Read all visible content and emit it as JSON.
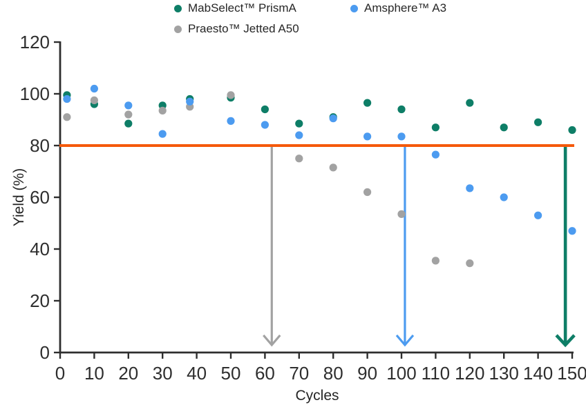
{
  "legend": {
    "items": [
      {
        "label": "MabSelect™ PrismA",
        "color": "#0e7e67"
      },
      {
        "label": "Amsphere™ A3",
        "color": "#4c9bf0"
      },
      {
        "label": "Praesto™ Jetted A50",
        "color": "#a2a2a2"
      }
    ]
  },
  "chart_data": {
    "type": "scatter",
    "title": "",
    "xlabel": "Cycles",
    "ylabel": "Yield (%)",
    "xlim": [
      0,
      150
    ],
    "ylim": [
      0,
      120
    ],
    "xticks": [
      0,
      10,
      20,
      30,
      40,
      50,
      60,
      70,
      80,
      90,
      100,
      110,
      120,
      130,
      140,
      150
    ],
    "yticks": [
      0,
      20,
      40,
      60,
      80,
      100,
      120
    ],
    "grid": false,
    "legend_position": "top",
    "axis_color": "#2e2e2e",
    "tick_label_color": "#2e2e2e",
    "threshold_line": {
      "y": 80,
      "color": "#f5590a"
    },
    "series": [
      {
        "name": "MabSelect™ PrismA",
        "color": "#0e7e67",
        "points": [
          [
            2,
            99.5
          ],
          [
            10,
            96
          ],
          [
            20,
            88.5
          ],
          [
            30,
            95.5
          ],
          [
            38,
            98
          ],
          [
            50,
            98.5
          ],
          [
            60,
            94
          ],
          [
            70,
            88.5
          ],
          [
            80,
            91
          ],
          [
            90,
            96.5
          ],
          [
            100,
            94
          ],
          [
            110,
            87
          ],
          [
            120,
            96.5
          ],
          [
            130,
            87
          ],
          [
            140,
            89
          ],
          [
            150,
            86
          ]
        ]
      },
      {
        "name": "Amsphere™ A3",
        "color": "#4c9bf0",
        "points": [
          [
            2,
            98
          ],
          [
            10,
            102
          ],
          [
            20,
            95.5
          ],
          [
            30,
            84.5
          ],
          [
            38,
            97
          ],
          [
            50,
            89.5
          ],
          [
            60,
            88
          ],
          [
            70,
            84
          ],
          [
            80,
            90.5
          ],
          [
            90,
            83.5
          ],
          [
            100,
            83.5
          ],
          [
            110,
            76.5
          ],
          [
            120,
            63.5
          ],
          [
            130,
            60
          ],
          [
            140,
            53
          ],
          [
            150,
            47
          ]
        ]
      },
      {
        "name": "Praesto™ Jetted A50",
        "color": "#a2a2a2",
        "points": [
          [
            2,
            91
          ],
          [
            10,
            97.5
          ],
          [
            20,
            92
          ],
          [
            30,
            93.5
          ],
          [
            38,
            95
          ],
          [
            50,
            99.5
          ],
          [
            70,
            75
          ],
          [
            80,
            71.5
          ],
          [
            90,
            62
          ],
          [
            100,
            53.5
          ],
          [
            110,
            35.5
          ],
          [
            120,
            34.5
          ]
        ]
      }
    ],
    "draw_order": [
      0,
      2,
      1
    ],
    "arrows": [
      {
        "x": 62,
        "color": "#a2a2a2",
        "stroke_width": 3.2
      },
      {
        "x": 101,
        "color": "#4c9bf0",
        "stroke_width": 3.2
      },
      {
        "x": 148,
        "color": "#0e7e67",
        "stroke_width": 4.6
      }
    ]
  }
}
